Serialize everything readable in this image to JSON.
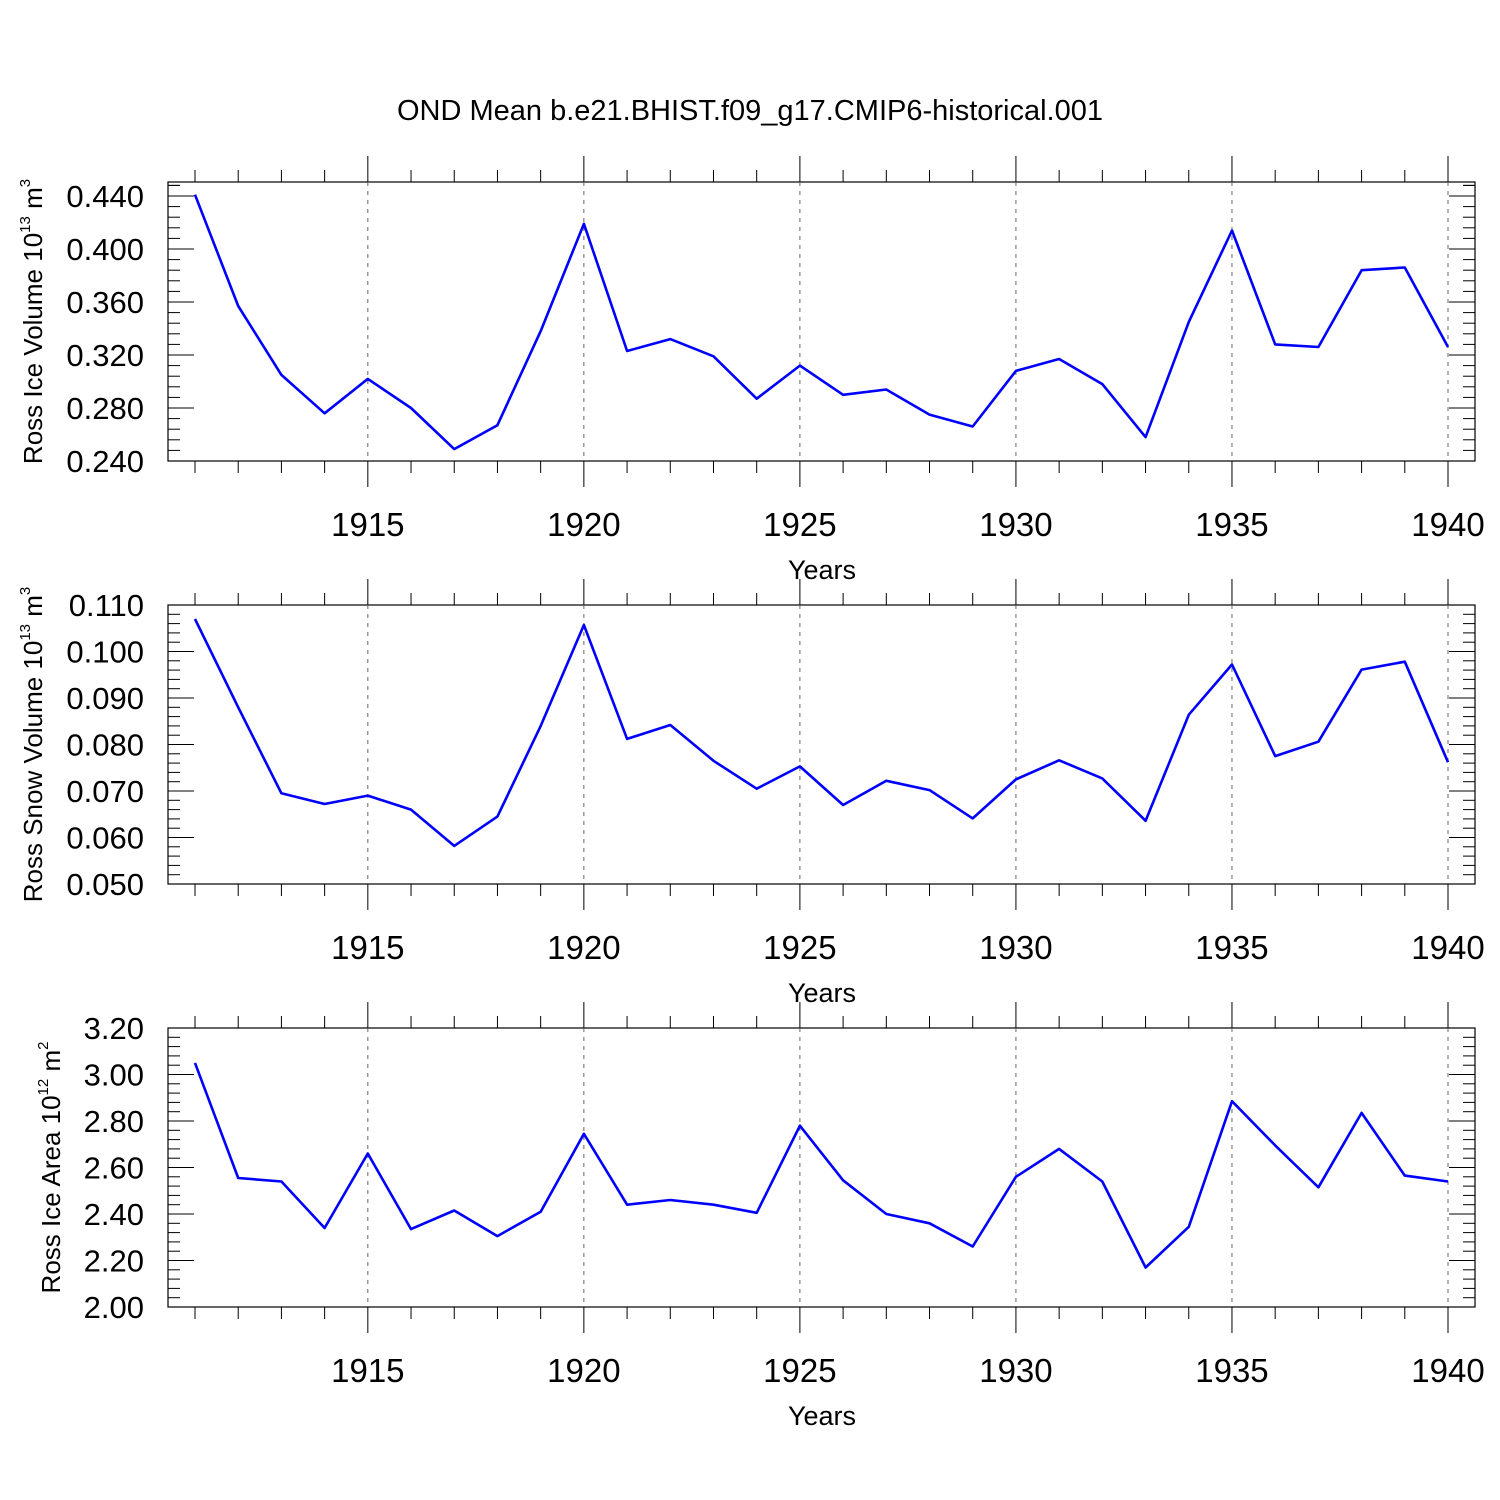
{
  "title": "OND Mean b.e21.BHIST.f09_g17.CMIP6-historical.001",
  "chart_data": [
    {
      "type": "line",
      "ylabel": {
        "text": "Ross Ice Volume 10",
        "exp": "13",
        "unit": " m",
        "unit_exp": "3"
      },
      "xlabel": "Years",
      "ylim": [
        0.24,
        0.45
      ],
      "yticks": [
        "0.240",
        "0.280",
        "0.320",
        "0.360",
        "0.400",
        "0.440"
      ],
      "xlim": [
        1911,
        1940
      ],
      "xticks": [
        "1915",
        "1920",
        "1925",
        "1930",
        "1935",
        "1940"
      ],
      "grid": "dashed vertical at labeled years",
      "color": "#0000ff",
      "x": [
        1911,
        1912,
        1913,
        1914,
        1915,
        1916,
        1917,
        1918,
        1919,
        1920,
        1921,
        1922,
        1923,
        1924,
        1925,
        1926,
        1927,
        1928,
        1929,
        1930,
        1931,
        1932,
        1933,
        1934,
        1935,
        1936,
        1937,
        1938,
        1939,
        1940
      ],
      "values": [
        0.441,
        0.357,
        0.305,
        0.276,
        0.302,
        0.28,
        0.249,
        0.267,
        0.338,
        0.419,
        0.323,
        0.332,
        0.319,
        0.287,
        0.312,
        0.29,
        0.294,
        0.275,
        0.266,
        0.308,
        0.317,
        0.298,
        0.258,
        0.345,
        0.414,
        0.328,
        0.326,
        0.384,
        0.386,
        0.326
      ]
    },
    {
      "type": "line",
      "ylabel": {
        "text": "Ross Snow Volume 10",
        "exp": "13",
        "unit": " m",
        "unit_exp": "3"
      },
      "xlabel": "Years",
      "ylim": [
        0.05,
        0.11
      ],
      "yticks": [
        "0.050",
        "0.060",
        "0.070",
        "0.080",
        "0.090",
        "0.100",
        "0.110"
      ],
      "xlim": [
        1911,
        1940
      ],
      "xticks": [
        "1915",
        "1920",
        "1925",
        "1930",
        "1935",
        "1940"
      ],
      "grid": "dashed vertical at labeled years",
      "color": "#0000ff",
      "x": [
        1911,
        1912,
        1913,
        1914,
        1915,
        1916,
        1917,
        1918,
        1919,
        1920,
        1921,
        1922,
        1923,
        1924,
        1925,
        1926,
        1927,
        1928,
        1929,
        1930,
        1931,
        1932,
        1933,
        1934,
        1935,
        1936,
        1937,
        1938,
        1939,
        1940
      ],
      "values": [
        0.107,
        0.088,
        0.0695,
        0.0672,
        0.069,
        0.066,
        0.0582,
        0.0645,
        0.084,
        0.1057,
        0.0812,
        0.0842,
        0.0765,
        0.0705,
        0.0753,
        0.067,
        0.0722,
        0.0702,
        0.0641,
        0.0725,
        0.0766,
        0.0727,
        0.0636,
        0.0864,
        0.0972,
        0.0775,
        0.0806,
        0.0961,
        0.0978,
        0.0762
      ]
    },
    {
      "type": "line",
      "ylabel": {
        "text": "Ross Ice Area 10",
        "exp": "12",
        "unit": " m",
        "unit_exp": "2"
      },
      "xlabel": "Years",
      "ylim": [
        2.0,
        3.2
      ],
      "yticks": [
        "2.00",
        "2.20",
        "2.40",
        "2.60",
        "2.80",
        "3.00",
        "3.20"
      ],
      "xlim": [
        1911,
        1940
      ],
      "xticks": [
        "1915",
        "1920",
        "1925",
        "1930",
        "1935",
        "1940"
      ],
      "grid": "dashed vertical at labeled years",
      "color": "#0000ff",
      "x": [
        1911,
        1912,
        1913,
        1914,
        1915,
        1916,
        1917,
        1918,
        1919,
        1920,
        1921,
        1922,
        1923,
        1924,
        1925,
        1926,
        1927,
        1928,
        1929,
        1930,
        1931,
        1932,
        1933,
        1934,
        1935,
        1936,
        1937,
        1938,
        1939,
        1940
      ],
      "values": [
        3.05,
        2.555,
        2.54,
        2.34,
        2.66,
        2.335,
        2.415,
        2.305,
        2.41,
        2.745,
        2.44,
        2.46,
        2.44,
        2.405,
        2.78,
        2.545,
        2.4,
        2.36,
        2.26,
        2.56,
        2.68,
        2.54,
        2.17,
        2.345,
        2.885,
        2.695,
        2.515,
        2.835,
        2.565,
        2.54
      ]
    }
  ]
}
